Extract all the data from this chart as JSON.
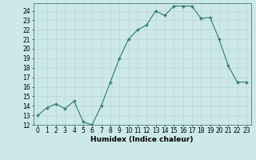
{
  "x": [
    0,
    1,
    2,
    3,
    4,
    5,
    6,
    7,
    8,
    9,
    10,
    11,
    12,
    13,
    14,
    15,
    16,
    17,
    18,
    19,
    20,
    21,
    22,
    23
  ],
  "y": [
    13,
    13.8,
    14.2,
    13.7,
    14.5,
    12.3,
    12.0,
    14.0,
    16.5,
    19.0,
    21.0,
    22.0,
    22.5,
    24.0,
    23.5,
    24.5,
    24.5,
    24.5,
    23.2,
    23.3,
    21.0,
    18.2,
    16.5,
    16.5
  ],
  "xlabel": "Humidex (Indice chaleur)",
  "ylim": [
    12,
    24.8
  ],
  "xlim": [
    -0.5,
    23.5
  ],
  "yticks": [
    12,
    13,
    14,
    15,
    16,
    17,
    18,
    19,
    20,
    21,
    22,
    23,
    24
  ],
  "xticks": [
    0,
    1,
    2,
    3,
    4,
    5,
    6,
    7,
    8,
    9,
    10,
    11,
    12,
    13,
    14,
    15,
    16,
    17,
    18,
    19,
    20,
    21,
    22,
    23
  ],
  "line_color": "#2d7a6a",
  "bg_color": "#cde8e8",
  "grid_color": "#b8d4d4",
  "label_fontsize": 6.5,
  "tick_fontsize": 5.5
}
